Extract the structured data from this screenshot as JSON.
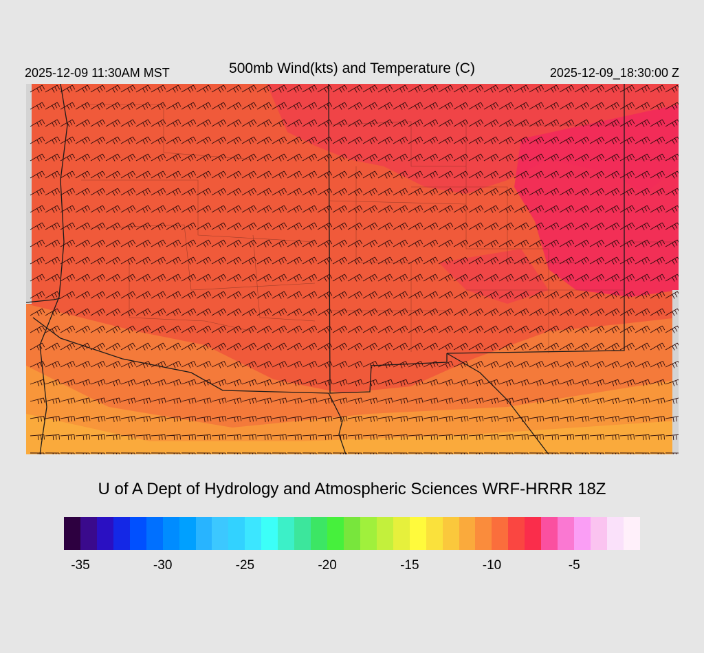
{
  "header": {
    "local_time": "2025-12-09 11:30AM MST",
    "title": "500mb Wind(kts) and Temperature (C)",
    "utc_time": "2025-12-09_18:30:00 Z"
  },
  "footer": {
    "credit": "U of A Dept of Hydrology and Atmospheric Sciences WRF-HRRR 18Z"
  },
  "colorbar": {
    "min": -36,
    "step": 1,
    "colors": [
      "#2d0040",
      "#3a0a8c",
      "#2a10c2",
      "#1428e6",
      "#0050ff",
      "#0070ff",
      "#008cff",
      "#00a0ff",
      "#28b4ff",
      "#3cc8ff",
      "#32d2ff",
      "#3ce6ff",
      "#3cfff8",
      "#3cf0c8",
      "#3ce69c",
      "#3ce664",
      "#46f03c",
      "#78e63c",
      "#a0f03c",
      "#c3f03c",
      "#e6f03c",
      "#fffa3c",
      "#fae13c",
      "#fac83c",
      "#faaa3c",
      "#fa8c3c",
      "#fa6e3c",
      "#fa4641",
      "#fa2d4b",
      "#fa50a0",
      "#fa78d2",
      "#fa9ef5",
      "#fac3f0",
      "#fae1fa",
      "#fff0fa"
    ],
    "tick_labels": [
      "-35",
      "-30",
      "-25",
      "-20",
      "-15",
      "-10",
      "-5"
    ],
    "tick_values": [
      -35,
      -30,
      -25,
      -20,
      -15,
      -10,
      -5
    ]
  }
}
